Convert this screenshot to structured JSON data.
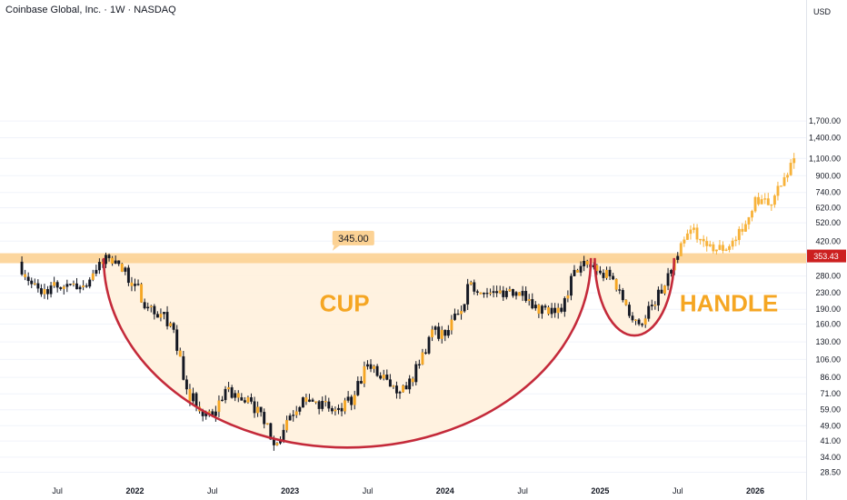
{
  "header": {
    "title": "Coinbase Global, Inc. · 1W · NASDAQ",
    "currency": "USD"
  },
  "colors": {
    "up": "#131722",
    "down": "#131722",
    "projection": "#f7b23a",
    "zone": "#fcd294",
    "arc": "#c42a3a",
    "label": "#f5a623",
    "price_tag": "#cc2020"
  },
  "chart_data": {
    "type": "candlestick",
    "title": "Coinbase Global, Inc. · 1W · NASDAQ",
    "y_scale": "log",
    "ylim": [
      27,
      1850
    ],
    "y_ticks": [
      "1,700.00",
      "1,400.00",
      "1,100.00",
      "900.00",
      "740.00",
      "620.00",
      "520.00",
      "420.00",
      "340.00",
      "280.00",
      "230.00",
      "190.00",
      "160.00",
      "130.00",
      "106.00",
      "86.00",
      "71.00",
      "59.00",
      "49.00",
      "41.00",
      "34.00",
      "28.50"
    ],
    "y_tick_values": [
      1700,
      1400,
      1100,
      900,
      740,
      620,
      520,
      420,
      340,
      280,
      230,
      190,
      160,
      130,
      106,
      86,
      71,
      59,
      49,
      41,
      34,
      28.5
    ],
    "x_ticks": [
      "Jul",
      "2022",
      "Jul",
      "2023",
      "Jul",
      "2024",
      "Jul",
      "2025",
      "Jul",
      "2026"
    ],
    "x_tick_values": [
      "2021-07",
      "2022-01",
      "2022-07",
      "2023-01",
      "2023-07",
      "2024-01",
      "2024-07",
      "2025-01",
      "2025-07",
      "2026-01"
    ],
    "last_price": "353.43",
    "resistance": {
      "label": "345.00",
      "value": 345,
      "band_low": 325,
      "band_high": 365
    },
    "annotations": [
      {
        "text": "CUP",
        "color": "#f5a623"
      },
      {
        "text": "HANDLE",
        "color": "#f5a623"
      }
    ],
    "series": [
      {
        "name": "",
        "kind": "historical",
        "points": [
          [
            "2021-04",
            330
          ],
          [
            "2021-05",
            255
          ],
          [
            "2021-06",
            240
          ],
          [
            "2021-07",
            245
          ],
          [
            "2021-08",
            255
          ],
          [
            "2021-09",
            250
          ],
          [
            "2021-10",
            300
          ],
          [
            "2021-11",
            345
          ],
          [
            "2021-12",
            295
          ],
          [
            "2022-01",
            255
          ],
          [
            "2022-02",
            195
          ],
          [
            "2022-03",
            180
          ],
          [
            "2022-04",
            150
          ],
          [
            "2022-05",
            75
          ],
          [
            "2022-06",
            58
          ],
          [
            "2022-07",
            55
          ],
          [
            "2022-08",
            75
          ],
          [
            "2022-09",
            68
          ],
          [
            "2022-10",
            65
          ],
          [
            "2022-11",
            50
          ],
          [
            "2022-12",
            40
          ],
          [
            "2023-01",
            55
          ],
          [
            "2023-02",
            68
          ],
          [
            "2023-03",
            65
          ],
          [
            "2023-04",
            60
          ],
          [
            "2023-05",
            58
          ],
          [
            "2023-06",
            70
          ],
          [
            "2023-07",
            100
          ],
          [
            "2023-08",
            85
          ],
          [
            "2023-09",
            78
          ],
          [
            "2023-10",
            75
          ],
          [
            "2023-11",
            100
          ],
          [
            "2023-12",
            150
          ],
          [
            "2024-01",
            140
          ],
          [
            "2024-02",
            180
          ],
          [
            "2024-03",
            260
          ],
          [
            "2024-04",
            230
          ],
          [
            "2024-05",
            230
          ],
          [
            "2024-06",
            240
          ],
          [
            "2024-07",
            235
          ],
          [
            "2024-08",
            200
          ],
          [
            "2024-09",
            180
          ],
          [
            "2024-10",
            185
          ],
          [
            "2024-11",
            300
          ],
          [
            "2024-12",
            320
          ],
          [
            "2025-01",
            290
          ],
          [
            "2025-02",
            270
          ],
          [
            "2025-03",
            200
          ],
          [
            "2025-04",
            160
          ],
          [
            "2025-05",
            200
          ],
          [
            "2025-06",
            250
          ],
          [
            "2025-07",
            353
          ]
        ]
      },
      {
        "name": "",
        "kind": "projection",
        "points": [
          [
            "2025-07",
            353
          ],
          [
            "2025-08",
            480
          ],
          [
            "2025-09",
            420
          ],
          [
            "2025-10",
            380
          ],
          [
            "2025-11",
            395
          ],
          [
            "2025-12",
            470
          ],
          [
            "2026-01",
            700
          ],
          [
            "2026-02",
            640
          ],
          [
            "2026-03",
            800
          ],
          [
            "2026-04",
            1100
          ]
        ]
      }
    ]
  }
}
